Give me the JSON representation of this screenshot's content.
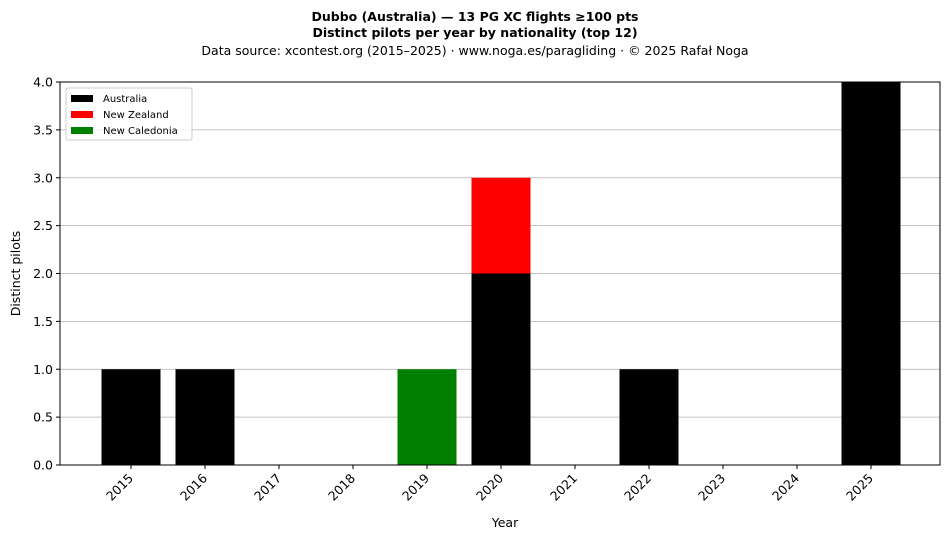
{
  "chart_data": {
    "type": "bar",
    "stacked": true,
    "title": "Dubbo (Australia)  —  13 PG XC flights ≥100 pts",
    "subtitle": "Distinct pilots per year by nationality (top 12)",
    "source": "Data source: xcontest.org (2015–2025)  ·  www.noga.es/paragliding  ·  © 2025 Rafał Noga",
    "xlabel": "Year",
    "ylabel": "Distinct pilots",
    "ylim": [
      0,
      4
    ],
    "yticks": [
      "0.0",
      "0.5",
      "1.0",
      "1.5",
      "2.0",
      "2.5",
      "3.0",
      "3.5",
      "4.0"
    ],
    "grid": "horizontal",
    "legend_position": "top-left",
    "categories": [
      "2015",
      "2016",
      "2017",
      "2018",
      "2019",
      "2020",
      "2021",
      "2022",
      "2023",
      "2024",
      "2025"
    ],
    "series": [
      {
        "name": "Australia",
        "color": "#000000",
        "values": [
          1,
          1,
          0,
          0,
          0,
          2,
          0,
          1,
          0,
          0,
          4
        ]
      },
      {
        "name": "New Zealand",
        "color": "#ff0000",
        "values": [
          0,
          0,
          0,
          0,
          0,
          1,
          0,
          0,
          0,
          0,
          0
        ]
      },
      {
        "name": "New Caledonia",
        "color": "#008000",
        "values": [
          0,
          0,
          0,
          0,
          1,
          0,
          0,
          0,
          0,
          0,
          0
        ]
      }
    ]
  }
}
